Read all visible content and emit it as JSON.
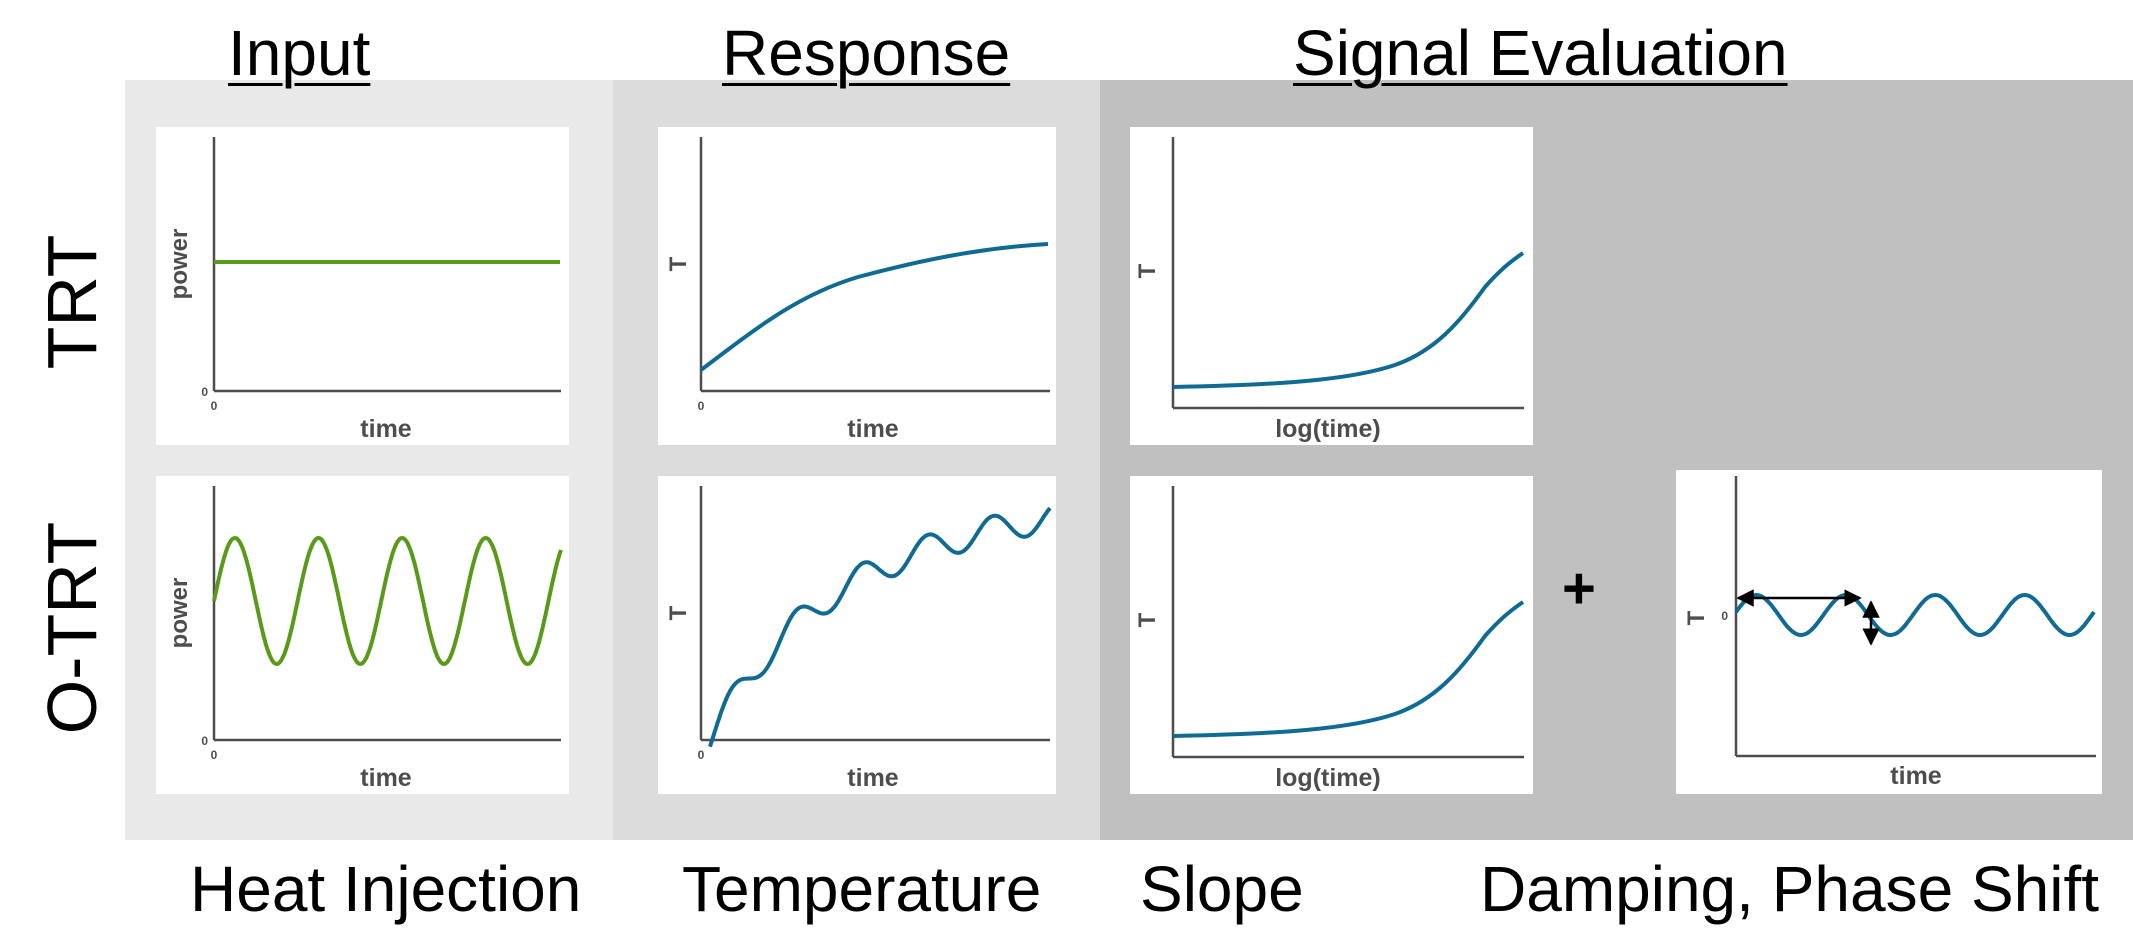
{
  "headers": {
    "input": "Input",
    "response": "Response",
    "evaluation": "Signal Evaluation"
  },
  "rows": {
    "trt": "TRT",
    "otrt": "O-TRT"
  },
  "footers": {
    "heat": "Heat Injection",
    "temperature": "Temperature",
    "slope": "Slope",
    "damping": "Damping, Phase Shift"
  },
  "plus": "+",
  "colors": {
    "input_curve": "#5a9a1a",
    "response_curve": "#0f6a94",
    "axis": "#4d4d4d",
    "bg_input": "#e9e9e9",
    "bg_response": "#dcdcdc",
    "bg_evaluation": "#c0c0c0"
  },
  "panels": {
    "trt_input": {
      "xlabel": "time",
      "ylabel": "power",
      "x0": "0",
      "y0": "0"
    },
    "trt_response": {
      "xlabel": "time",
      "ylabel": "T",
      "x0": "0"
    },
    "trt_slope": {
      "xlabel": "log(time)",
      "ylabel": "T"
    },
    "otrt_input": {
      "xlabel": "time",
      "ylabel": "power",
      "x0": "0",
      "y0": "0"
    },
    "otrt_response": {
      "xlabel": "time",
      "ylabel": "T",
      "x0": "0"
    },
    "otrt_slope": {
      "xlabel": "log(time)",
      "ylabel": "T"
    },
    "otrt_damping": {
      "xlabel": "time",
      "ylabel": "T",
      "y0": "0"
    }
  }
}
